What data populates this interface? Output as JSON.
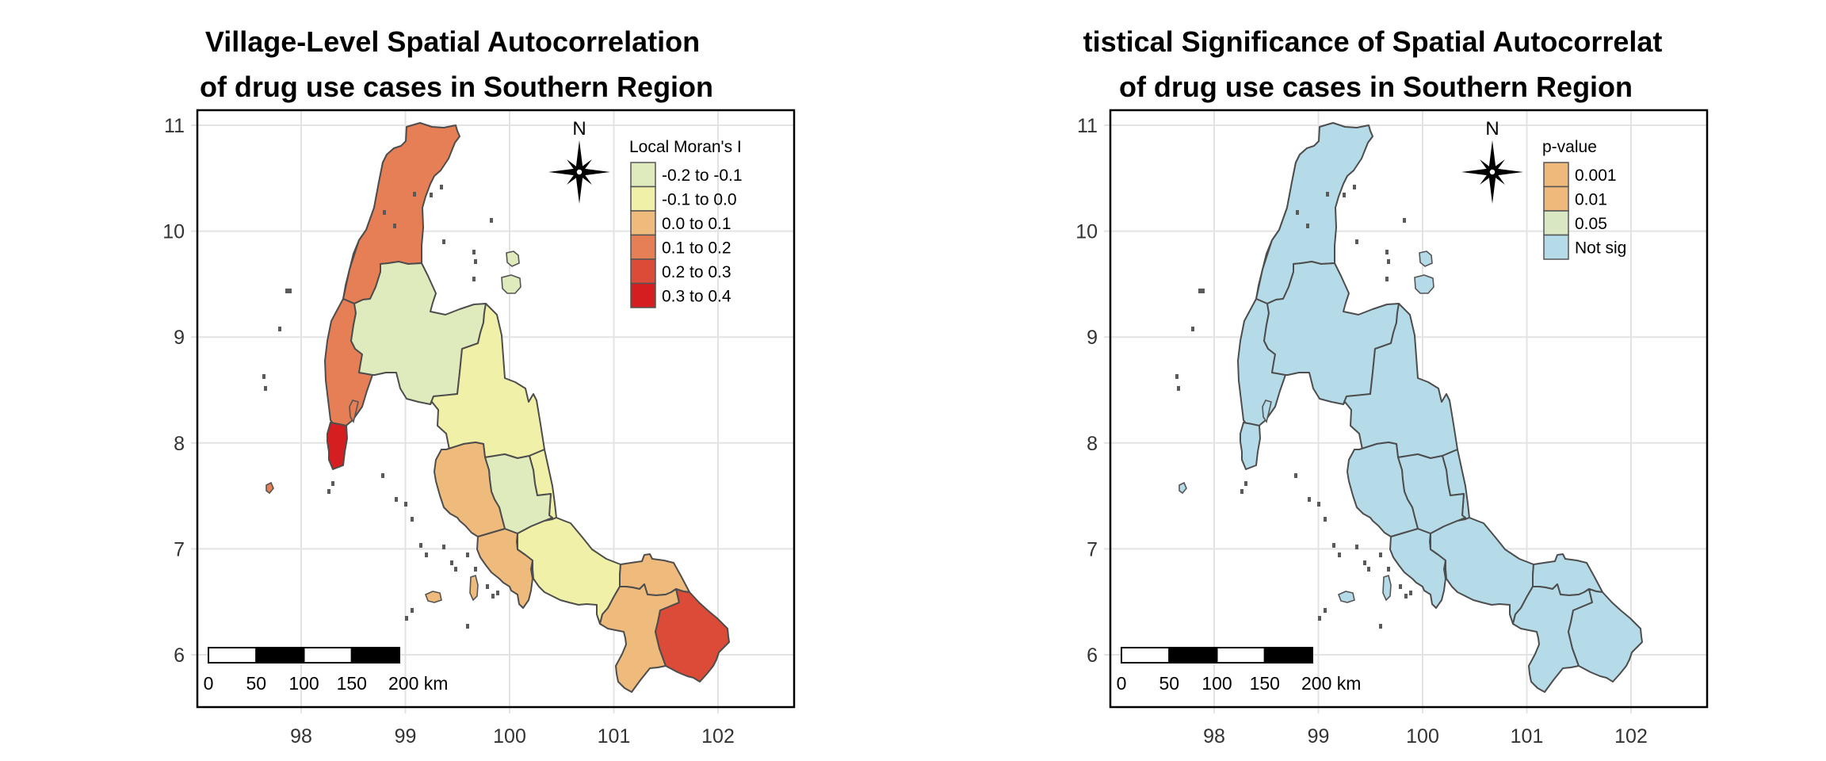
{
  "panels": [
    {
      "id": "moran",
      "title_lines": [
        "Village-Level Spatial Autocorrelation",
        "of drug use cases in Southern Region"
      ],
      "legend": {
        "title": "Local Moran's I",
        "items": [
          {
            "label": "-0.2 to -0.1",
            "color": "#dfebbd"
          },
          {
            "label": "-0.1 to 0.0",
            "color": "#f1f0a8"
          },
          {
            "label": "0.0 to 0.1",
            "color": "#eebb7c"
          },
          {
            "label": "0.1 to 0.2",
            "color": "#e67f55"
          },
          {
            "label": "0.2 to 0.3",
            "color": "#dc4b37"
          },
          {
            "label": "0.3 to 0.4",
            "color": "#d41e1f"
          }
        ]
      },
      "region_classes": [
        "0.1 to 0.2",
        "0.1 to 0.2",
        "0.1 to 0.2",
        "0.3 to 0.4",
        "-0.2 to -0.1",
        "-0.1 to 0.0",
        "-0.1 to 0.0",
        "-0.2 to -0.1",
        "0.0 to 0.1",
        "0.0 to 0.1",
        "-0.1 to 0.0",
        "0.0 to 0.1",
        "0.0 to 0.1",
        "0.2 to 0.3"
      ],
      "island_classes": [
        "-0.2 to -0.1",
        "-0.2 to -0.1",
        "0.1 to 0.2",
        "0.0 to 0.1",
        "0.0 to 0.1",
        "0.1 to 0.2"
      ]
    },
    {
      "id": "pvalue",
      "title_lines": [
        "tistical Significance of Spatial Autocorrelat",
        "of drug use cases in Southern Region"
      ],
      "legend": {
        "title": "p-value",
        "items": [
          {
            "label": "0.001",
            "color": "#eeb97b"
          },
          {
            "label": "0.01",
            "color": "#eeb97b"
          },
          {
            "label": "0.05",
            "color": "#d9e7c3"
          },
          {
            "label": "Not sig",
            "color": "#b5dbe8"
          }
        ]
      },
      "region_classes": [
        "Not sig",
        "Not sig",
        "Not sig",
        "Not sig",
        "Not sig",
        "Not sig",
        "Not sig",
        "Not sig",
        "Not sig",
        "Not sig",
        "Not sig",
        "Not sig",
        "Not sig",
        "Not sig"
      ],
      "island_classes": [
        "Not sig",
        "Not sig",
        "Not sig",
        "Not sig",
        "Not sig",
        "Not sig"
      ]
    }
  ],
  "axes": {
    "x_ticks": [
      "98",
      "99",
      "100",
      "101",
      "102"
    ],
    "x_values": [
      98,
      99,
      100,
      101,
      102
    ],
    "y_ticks": [
      "11",
      "10",
      "9",
      "8",
      "7",
      "6"
    ],
    "y_values": [
      11,
      10,
      9,
      8,
      7,
      6
    ],
    "xlim": [
      97.05,
      102.8
    ],
    "ylim": [
      5.55,
      11.15
    ]
  },
  "scale_bar": {
    "labels": [
      "0",
      "50",
      "100",
      "150",
      "200 km"
    ],
    "distances_km": [
      0,
      50,
      100,
      150,
      200
    ]
  },
  "north_arrow": {
    "label": "N"
  }
}
